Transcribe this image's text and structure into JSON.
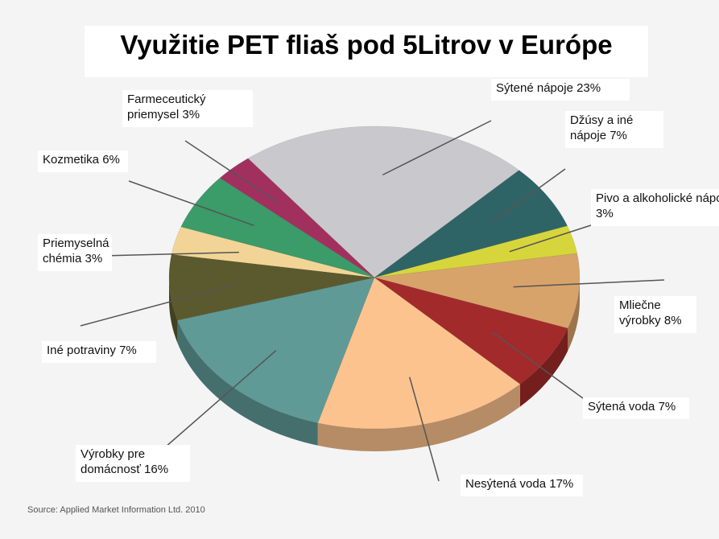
{
  "chart_data": {
    "type": "pie",
    "title": "Využitie PET fliaš pod 5Litrov v Európe",
    "source": "Source: Applied Market Information Ltd. 2010",
    "categories": [
      "Sýtené nápoje",
      "Džúsy a iné nápoje",
      "Pivo a alkoholické nápoje",
      "Mliečne výrobky",
      "Sýtená voda",
      "Nesýtená voda",
      "Výrobky pre domácnosť",
      "Iné potraviny",
      "Priemyselná chémia",
      "Kozmetika",
      "Farmeceutický priemysel"
    ],
    "values": [
      23,
      7,
      3,
      8,
      7,
      17,
      16,
      7,
      3,
      6,
      3
    ],
    "value_labels": [
      "23%",
      "7%",
      "3%",
      "8%",
      "7%",
      "17%",
      "16%",
      "7%",
      "3%",
      "6%",
      "3%"
    ],
    "colors": [
      "#c9c9cd",
      "#2f6467",
      "#d6d63c",
      "#d8a36a",
      "#a32a2a",
      "#fcc38e",
      "#5f9a97",
      "#5b5a2e",
      "#f2d596",
      "#3b9b69",
      "#a2305f"
    ]
  }
}
